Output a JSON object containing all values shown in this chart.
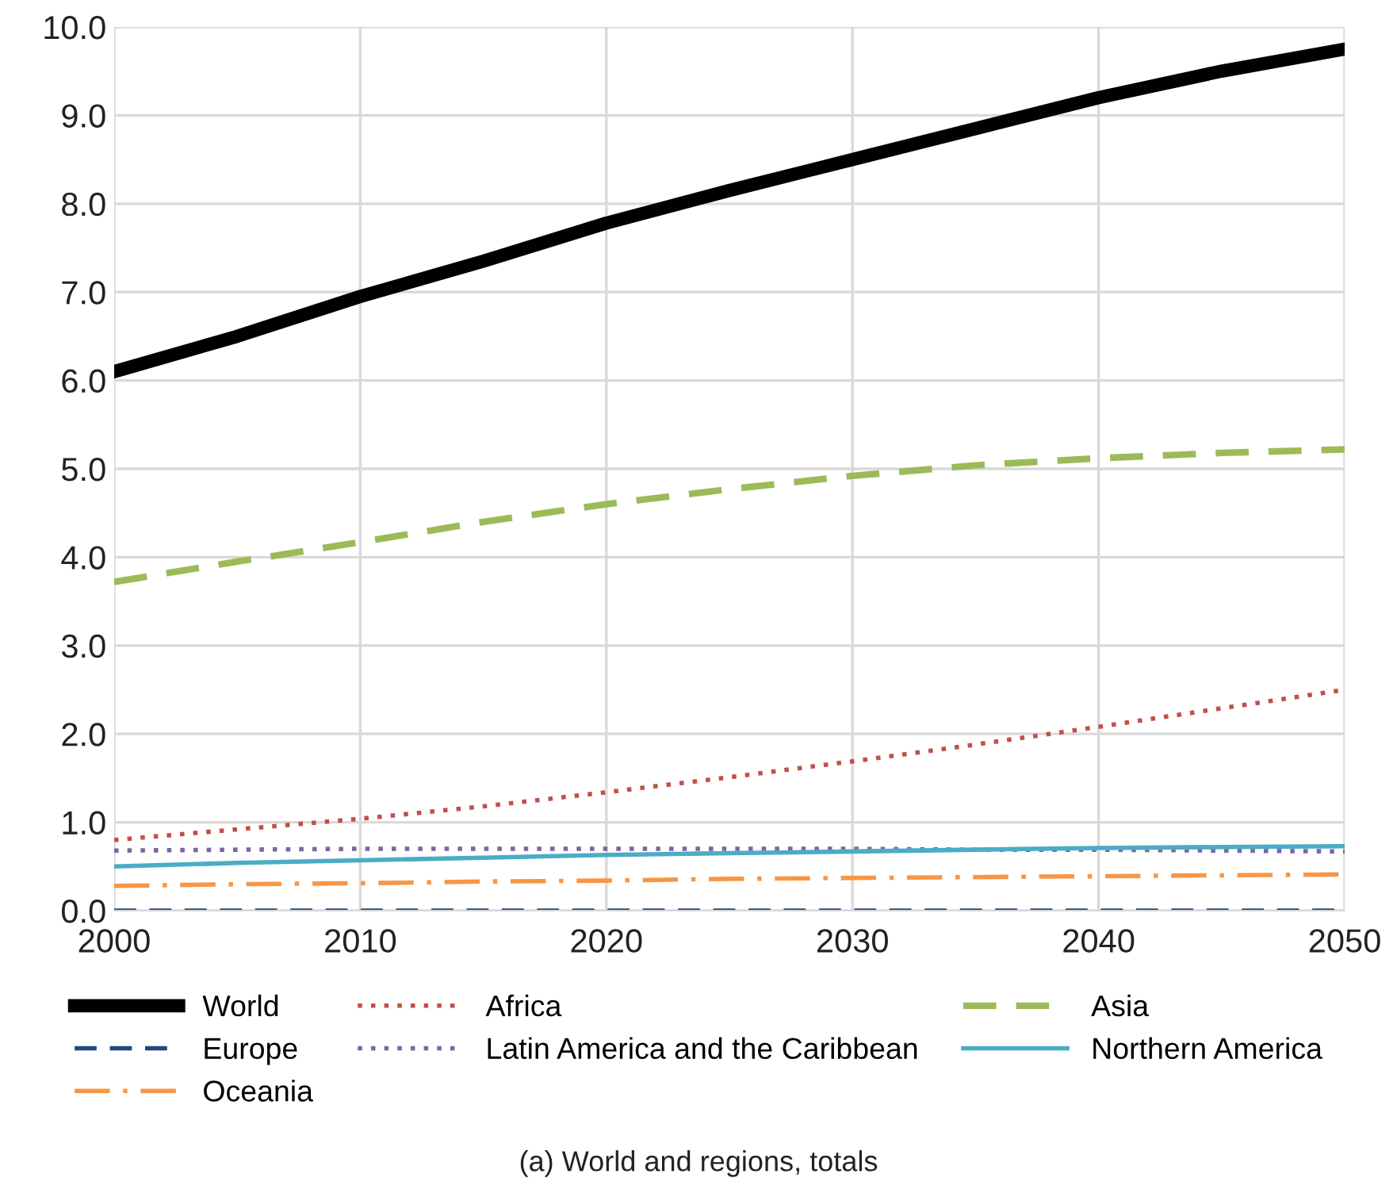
{
  "chart_data": {
    "type": "line",
    "x": [
      2000,
      2005,
      2010,
      2015,
      2020,
      2025,
      2030,
      2035,
      2040,
      2045,
      2050
    ],
    "series": [
      {
        "name": "World",
        "color": "#000000",
        "line_style": "solid",
        "values": [
          6.1,
          6.5,
          6.95,
          7.35,
          7.78,
          8.15,
          8.5,
          8.85,
          9.2,
          9.5,
          9.75
        ]
      },
      {
        "name": "Africa",
        "color": "#c0504d",
        "line_style": "dotted",
        "values": [
          0.8,
          0.92,
          1.04,
          1.18,
          1.34,
          1.51,
          1.69,
          1.88,
          2.08,
          2.29,
          2.5
        ]
      },
      {
        "name": "Asia",
        "color": "#9bbb59",
        "line_style": "dashed",
        "values": [
          3.72,
          3.95,
          4.17,
          4.4,
          4.6,
          4.77,
          4.92,
          5.04,
          5.12,
          5.18,
          5.22
        ]
      },
      {
        "name": "Europe",
        "color": "#1f497d",
        "line_style": "dashed",
        "values": [
          0,
          0,
          0,
          0,
          0,
          0,
          0,
          0,
          0,
          0,
          0
        ]
      },
      {
        "name": "Latin America and the Caribbean",
        "color": "#8064a2",
        "line_style": "dotted",
        "values": [
          0.68,
          0.69,
          0.7,
          0.7,
          0.7,
          0.7,
          0.7,
          0.69,
          0.69,
          0.68,
          0.67
        ]
      },
      {
        "name": "Northern America",
        "color": "#4bacc6",
        "line_style": "solid",
        "values": [
          0.5,
          0.54,
          0.57,
          0.6,
          0.63,
          0.65,
          0.67,
          0.69,
          0.71,
          0.72,
          0.73
        ]
      },
      {
        "name": "Oceania",
        "color": "#f79646",
        "line_style": "dashdot",
        "values": [
          0.28,
          0.3,
          0.31,
          0.33,
          0.34,
          0.36,
          0.37,
          0.38,
          0.39,
          0.4,
          0.41
        ]
      }
    ],
    "xlim": [
      2000,
      2050
    ],
    "xticks": [
      2000,
      2010,
      2020,
      2030,
      2040,
      2050
    ],
    "ylim": [
      0,
      10
    ],
    "yticks": [
      {
        "value": 0,
        "label": "0.0"
      },
      {
        "value": 1,
        "label": "1.0"
      },
      {
        "value": 2,
        "label": "2.0"
      },
      {
        "value": 3,
        "label": "3.0"
      },
      {
        "value": 4,
        "label": "4.0"
      },
      {
        "value": 5,
        "label": "5.0"
      },
      {
        "value": 6,
        "label": "6.0"
      },
      {
        "value": 7,
        "label": "7.0"
      },
      {
        "value": 8,
        "label": "8.0"
      },
      {
        "value": 9,
        "label": "9.0"
      },
      {
        "value": 10,
        "label": "10.0"
      }
    ],
    "grid": true,
    "legend": "bottom",
    "marker": "none",
    "annotations": [
      "(a) World and regions, totals"
    ]
  }
}
